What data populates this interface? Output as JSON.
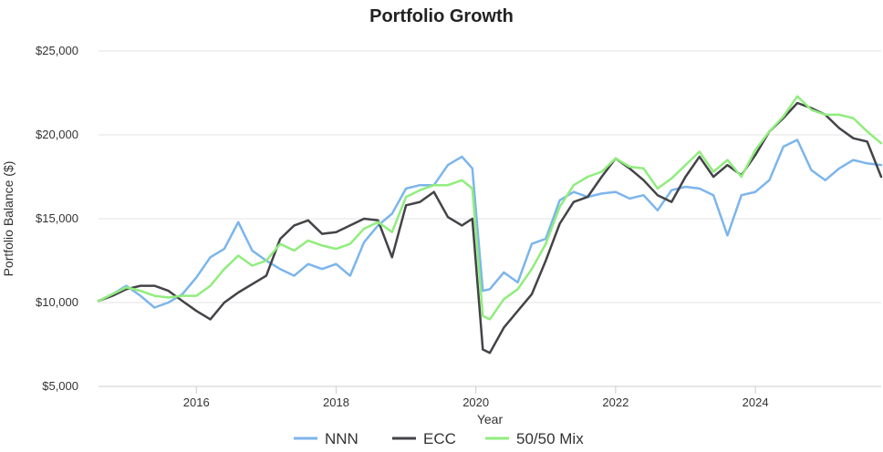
{
  "chart_data": {
    "type": "line",
    "title": "Portfolio Growth",
    "xlabel": "Year",
    "ylabel": "Portfolio Balance ($)",
    "ylim": [
      5000,
      25000
    ],
    "xlim": [
      2014.6,
      2025.8
    ],
    "y_ticks": [
      5000,
      10000,
      15000,
      20000,
      25000
    ],
    "y_tick_labels": [
      "$5,000",
      "$10,000",
      "$15,000",
      "$20,000",
      "$25,000"
    ],
    "x_ticks": [
      2016,
      2018,
      2020,
      2022,
      2024
    ],
    "x_tick_labels": [
      "2016",
      "2018",
      "2020",
      "2022",
      "2024"
    ],
    "grid": true,
    "legend_position": "bottom",
    "x": [
      2014.6,
      2014.8,
      2015.0,
      2015.2,
      2015.4,
      2015.6,
      2015.8,
      2016.0,
      2016.2,
      2016.4,
      2016.6,
      2016.8,
      2017.0,
      2017.2,
      2017.4,
      2017.6,
      2017.8,
      2018.0,
      2018.2,
      2018.4,
      2018.6,
      2018.8,
      2019.0,
      2019.2,
      2019.4,
      2019.6,
      2019.8,
      2019.95,
      2020.1,
      2020.2,
      2020.4,
      2020.6,
      2020.8,
      2021.0,
      2021.2,
      2021.4,
      2021.6,
      2021.8,
      2022.0,
      2022.2,
      2022.4,
      2022.6,
      2022.8,
      2023.0,
      2023.2,
      2023.4,
      2023.6,
      2023.8,
      2024.0,
      2024.2,
      2024.4,
      2024.6,
      2024.8,
      2025.0,
      2025.2,
      2025.4,
      2025.6,
      2025.8
    ],
    "series": [
      {
        "name": "NNN",
        "color": "#7cb5ec",
        "values": [
          10100,
          10500,
          11000,
          10400,
          9700,
          10000,
          10500,
          11500,
          12700,
          13200,
          14800,
          13100,
          12500,
          12000,
          11600,
          12300,
          12000,
          12300,
          11600,
          13600,
          14600,
          15300,
          16800,
          17000,
          17000,
          18200,
          18700,
          18000,
          10700,
          10800,
          11800,
          11200,
          13500,
          13800,
          16100,
          16600,
          16300,
          16500,
          16600,
          16200,
          16400,
          15500,
          16700,
          16900,
          16800,
          16400,
          14000,
          16400,
          16600,
          17300,
          19300,
          19700,
          17900,
          17300,
          18000,
          18500,
          18300,
          18200
        ]
      },
      {
        "name": "ECC",
        "color": "#434348",
        "values": [
          10100,
          10400,
          10800,
          11000,
          11000,
          10700,
          10100,
          9500,
          9000,
          10000,
          10600,
          11100,
          11600,
          13800,
          14600,
          14900,
          14100,
          14200,
          14600,
          15000,
          14900,
          12700,
          15800,
          16000,
          16600,
          15100,
          14600,
          15000,
          7200,
          7000,
          8500,
          9500,
          10500,
          12500,
          14700,
          16000,
          16300,
          17500,
          18600,
          18000,
          17300,
          16400,
          16000,
          17500,
          18700,
          17500,
          18200,
          17600,
          18800,
          20200,
          21000,
          21900,
          21600,
          21200,
          20400,
          19800,
          19600,
          17500
        ]
      },
      {
        "name": "50/50 Mix",
        "color": "#90ed7d",
        "values": [
          10100,
          10500,
          10900,
          10700,
          10400,
          10300,
          10400,
          10400,
          11000,
          12000,
          12800,
          12200,
          12500,
          13500,
          13100,
          13700,
          13400,
          13200,
          13500,
          14400,
          14800,
          14200,
          16300,
          16700,
          17000,
          17000,
          17300,
          16800,
          9200,
          9000,
          10200,
          10800,
          12000,
          13500,
          15700,
          17000,
          17500,
          17800,
          18600,
          18100,
          18000,
          16800,
          17400,
          18200,
          19000,
          17800,
          18500,
          17500,
          19100,
          20200,
          21100,
          22300,
          21500,
          21200,
          21200,
          21000,
          20200,
          19500
        ]
      }
    ]
  }
}
